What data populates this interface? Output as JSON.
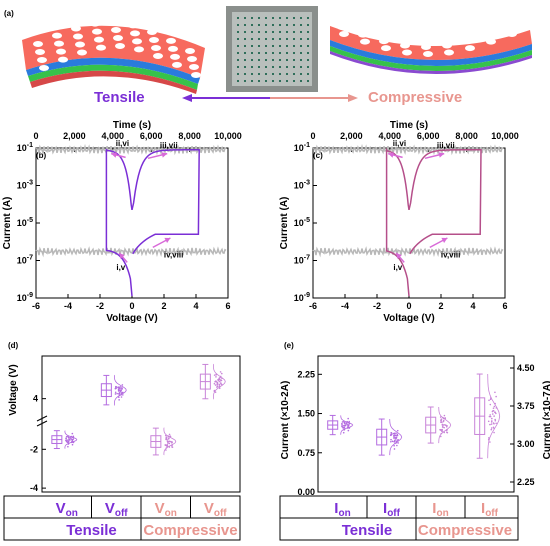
{
  "header": {
    "panel_a": "(a)",
    "tensile_label": "Tensile",
    "compressive_label": "Compressive"
  },
  "colors": {
    "tensile": "#7b2fd6",
    "compressive": "#e8968f",
    "gray": "#b8b8b8",
    "pink": "#d86ad8"
  },
  "chart_data": [
    {
      "panel": "(b)",
      "type": "line",
      "xlabel": "Voltage (V)",
      "ylabel": "Current (A)",
      "x2label": "Time (s)",
      "xlim": [
        -6,
        6
      ],
      "ylim_log10": [
        -9,
        -1
      ],
      "x_ticks": [
        "-6",
        "-4",
        "-2",
        "0",
        "2",
        "4",
        "6"
      ],
      "y_ticks": [
        "10-1",
        "10-3",
        "10-5",
        "10-7",
        "10-9"
      ],
      "x2_ticks": [
        "0",
        "2,000",
        "4,000",
        "6,000",
        "8,000",
        "10,000"
      ],
      "annotations": [
        "ii,vi",
        "iii,vii",
        "i,v",
        "iv,viii"
      ],
      "set_voltage": 4.2,
      "reset_voltage": -1.6,
      "on_current": 0.08,
      "off_current": 3e-07,
      "color": "#7b2fd6"
    },
    {
      "panel": "(c)",
      "type": "line",
      "xlabel": "Voltage (V)",
      "ylabel": "Current (A)",
      "x2label": "Time (s)",
      "xlim": [
        -6,
        6
      ],
      "ylim_log10": [
        -9,
        -1
      ],
      "x_ticks": [
        "-6",
        "-4",
        "-2",
        "0",
        "2",
        "4",
        "6"
      ],
      "y_ticks": [
        "10-1",
        "10-3",
        "10-5",
        "10-7",
        "10-9"
      ],
      "x2_ticks": [
        "0",
        "2,000",
        "4,000",
        "6,000",
        "8,000",
        "10,000"
      ],
      "annotations": [
        "ii,vi",
        "iii,vii",
        "i,v",
        "iv,viii"
      ],
      "set_voltage": 4.5,
      "reset_voltage": -1.4,
      "on_current": 0.08,
      "off_current": 3e-07,
      "color": "#b54f8a"
    },
    {
      "panel": "(d)",
      "type": "box",
      "ylabel": "Voltage (V)",
      "y_ticks": [
        "4",
        "-2",
        "-4"
      ],
      "categories": [
        "Von",
        "Voff",
        "Von",
        "Voff"
      ],
      "groups": [
        "Tensile",
        "Compressive"
      ],
      "medians": [
        -1.5,
        4.4,
        -1.6,
        4.8
      ]
    },
    {
      "panel": "(e)",
      "type": "box",
      "ylabel_left": "Current (×10-2A)",
      "ylabel_right": "Current (×10-7A)",
      "y_ticks_left": [
        "2.25",
        "1.50",
        "0.75",
        "0.00"
      ],
      "y_ticks_right": [
        "4.50",
        "3.75",
        "3.00",
        "2.25"
      ],
      "categories": [
        "Ion",
        "Ioff",
        "Ion",
        "Ioff"
      ],
      "groups": [
        "Tensile",
        "Compressive"
      ],
      "medians": [
        1.28,
        1.05,
        1.28,
        1.45
      ]
    }
  ]
}
